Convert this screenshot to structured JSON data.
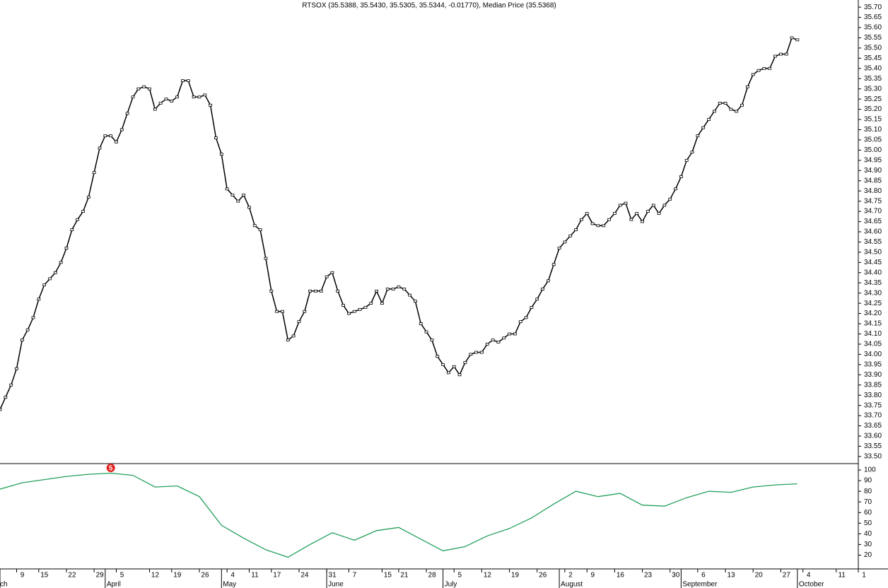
{
  "chart_data": [
    {
      "type": "line",
      "title": "RTSOX (35.5388, 35.5430, 35.5305, 35.5344, -0.01770), Median Price (35.5368)",
      "color": "#000000",
      "xlim": [
        0,
        155
      ],
      "ylim": [
        33.465,
        35.735
      ],
      "values": [
        33.73,
        33.79,
        33.85,
        33.93,
        34.07,
        34.12,
        34.18,
        34.27,
        34.34,
        34.37,
        34.4,
        34.45,
        34.52,
        34.61,
        34.66,
        34.7,
        34.77,
        34.89,
        35.01,
        35.07,
        35.07,
        35.04,
        35.1,
        35.18,
        35.26,
        35.3,
        35.31,
        35.3,
        35.2,
        35.23,
        35.25,
        35.24,
        35.26,
        35.34,
        35.34,
        35.26,
        35.26,
        35.27,
        35.22,
        35.06,
        34.98,
        34.81,
        34.78,
        34.75,
        34.78,
        34.72,
        34.63,
        34.61,
        34.47,
        34.31,
        34.21,
        34.21,
        34.07,
        34.09,
        34.16,
        34.21,
        34.31,
        34.31,
        34.31,
        34.38,
        34.4,
        34.31,
        34.24,
        34.2,
        34.21,
        34.22,
        34.23,
        34.25,
        34.31,
        34.25,
        34.32,
        34.32,
        34.33,
        34.32,
        34.29,
        34.26,
        34.15,
        34.11,
        34.07,
        33.99,
        33.95,
        33.91,
        33.94,
        33.9,
        33.96,
        34.0,
        34.01,
        34.01,
        34.05,
        34.07,
        34.06,
        34.08,
        34.1,
        34.1,
        34.16,
        34.18,
        34.23,
        34.27,
        34.32,
        34.36,
        34.44,
        34.52,
        34.55,
        34.58,
        34.61,
        34.66,
        34.69,
        34.64,
        34.63,
        34.63,
        34.66,
        34.69,
        34.73,
        34.74,
        34.66,
        34.69,
        34.65,
        34.7,
        34.73,
        34.69,
        34.73,
        34.76,
        34.81,
        34.87,
        34.95,
        34.99,
        35.07,
        35.11,
        35.15,
        35.19,
        35.23,
        35.23,
        35.2,
        35.19,
        35.22,
        35.31,
        35.37,
        35.39,
        35.4,
        35.4,
        35.46,
        35.47,
        35.47,
        35.55,
        35.54
      ],
      "yticks": [
        {
          "value": 33.5,
          "label": "33.50"
        },
        {
          "value": 33.55,
          "label": "33.55"
        },
        {
          "value": 33.6,
          "label": "33.60"
        },
        {
          "value": 33.65,
          "label": "33.65"
        },
        {
          "value": 33.7,
          "label": "33.70"
        },
        {
          "value": 33.75,
          "label": "33.75"
        },
        {
          "value": 33.8,
          "label": "33.80"
        },
        {
          "value": 33.85,
          "label": "33.85"
        },
        {
          "value": 33.9,
          "label": "33.90"
        },
        {
          "value": 33.95,
          "label": "33.95"
        },
        {
          "value": 34.0,
          "label": "34.00"
        },
        {
          "value": 34.05,
          "label": "34.05"
        },
        {
          "value": 34.1,
          "label": "34.10"
        },
        {
          "value": 34.15,
          "label": "34.15"
        },
        {
          "value": 34.2,
          "label": "34.20"
        },
        {
          "value": 34.25,
          "label": "34.25"
        },
        {
          "value": 34.3,
          "label": "34.30"
        },
        {
          "value": 34.35,
          "label": "34.35"
        },
        {
          "value": 34.4,
          "label": "34.40"
        },
        {
          "value": 34.45,
          "label": "34.45"
        },
        {
          "value": 34.5,
          "label": "34.50"
        },
        {
          "value": 34.55,
          "label": "34.55"
        },
        {
          "value": 34.6,
          "label": "34.60"
        },
        {
          "value": 34.65,
          "label": "34.65"
        },
        {
          "value": 34.7,
          "label": "34.70"
        },
        {
          "value": 34.75,
          "label": "34.75"
        },
        {
          "value": 34.8,
          "label": "34.80"
        },
        {
          "value": 34.85,
          "label": "34.85"
        },
        {
          "value": 34.9,
          "label": "34.90"
        },
        {
          "value": 34.95,
          "label": "34.95"
        },
        {
          "value": 35.0,
          "label": "35.00"
        },
        {
          "value": 35.05,
          "label": "35.05"
        },
        {
          "value": 35.1,
          "label": "35.10"
        },
        {
          "value": 35.15,
          "label": "35.15"
        },
        {
          "value": 35.2,
          "label": "35.20"
        },
        {
          "value": 35.25,
          "label": "35.25"
        },
        {
          "value": 35.3,
          "label": "35.30"
        },
        {
          "value": 35.35,
          "label": "35.35"
        },
        {
          "value": 35.4,
          "label": "35.40"
        },
        {
          "value": 35.45,
          "label": "35.45"
        },
        {
          "value": 35.5,
          "label": "35.50"
        },
        {
          "value": 35.55,
          "label": "35.55"
        },
        {
          "value": 35.6,
          "label": "35.60"
        },
        {
          "value": 35.65,
          "label": "35.65"
        },
        {
          "value": 35.7,
          "label": "35.70"
        }
      ]
    },
    {
      "type": "line",
      "color": "#22a05a",
      "xlim": [
        0,
        155
      ],
      "ylim": [
        7,
        106
      ],
      "x": [
        0,
        4,
        8,
        12,
        16,
        20,
        24,
        28,
        32,
        36,
        40,
        44,
        48,
        52,
        56,
        60,
        64,
        68,
        72,
        76,
        80,
        84,
        88,
        92,
        96,
        100,
        104,
        108,
        112,
        116,
        120,
        124,
        128,
        132,
        136,
        140,
        144
      ],
      "values": [
        82,
        88,
        91,
        94,
        96,
        97,
        95,
        84,
        85,
        75,
        48,
        36,
        25,
        18,
        30,
        41,
        34,
        43,
        46,
        35,
        24,
        28,
        38,
        45,
        55,
        68,
        80,
        75,
        78,
        67,
        66,
        74,
        80,
        79,
        84,
        86,
        87
      ],
      "yticks": [
        20,
        30,
        40,
        50,
        60,
        70,
        80,
        90,
        100
      ],
      "annotation": {
        "x": 20,
        "y": 98,
        "label": "5"
      },
      "xticks": [
        {
          "value": 3,
          "label": "9"
        },
        {
          "value": 7,
          "label": "15"
        },
        {
          "value": 12,
          "label": "22"
        },
        {
          "value": 17,
          "label": "29"
        },
        {
          "value": 21,
          "label": "5"
        },
        {
          "value": 27,
          "label": "12"
        },
        {
          "value": 31,
          "label": "19"
        },
        {
          "value": 36,
          "label": "26"
        },
        {
          "value": 41,
          "label": "4"
        },
        {
          "value": 45,
          "label": "11"
        },
        {
          "value": 49,
          "label": "17"
        },
        {
          "value": 54,
          "label": "24"
        },
        {
          "value": 59,
          "label": "31"
        },
        {
          "value": 63,
          "label": "7"
        },
        {
          "value": 69,
          "label": "15"
        },
        {
          "value": 72,
          "label": "21"
        },
        {
          "value": 77,
          "label": "28"
        },
        {
          "value": 82,
          "label": "5"
        },
        {
          "value": 87,
          "label": "12"
        },
        {
          "value": 92,
          "label": "19"
        },
        {
          "value": 97,
          "label": "26"
        },
        {
          "value": 102,
          "label": "2"
        },
        {
          "value": 106,
          "label": "9"
        },
        {
          "value": 111,
          "label": "16"
        },
        {
          "value": 116,
          "label": "23"
        },
        {
          "value": 121,
          "label": "30"
        },
        {
          "value": 126,
          "label": "6"
        },
        {
          "value": 131,
          "label": "13"
        },
        {
          "value": 136,
          "label": "20"
        },
        {
          "value": 141,
          "label": "27"
        },
        {
          "value": 145,
          "label": "4"
        },
        {
          "value": 151,
          "label": "11"
        },
        {
          "value": 155,
          "label": "1"
        }
      ],
      "months": [
        {
          "value": 0,
          "label": "ch"
        },
        {
          "value": 19,
          "label": "April"
        },
        {
          "value": 40,
          "label": "May"
        },
        {
          "value": 59,
          "label": "June"
        },
        {
          "value": 80,
          "label": "July"
        },
        {
          "value": 101,
          "label": "August"
        },
        {
          "value": 123,
          "label": "September"
        },
        {
          "value": 144,
          "label": "October"
        }
      ]
    }
  ]
}
